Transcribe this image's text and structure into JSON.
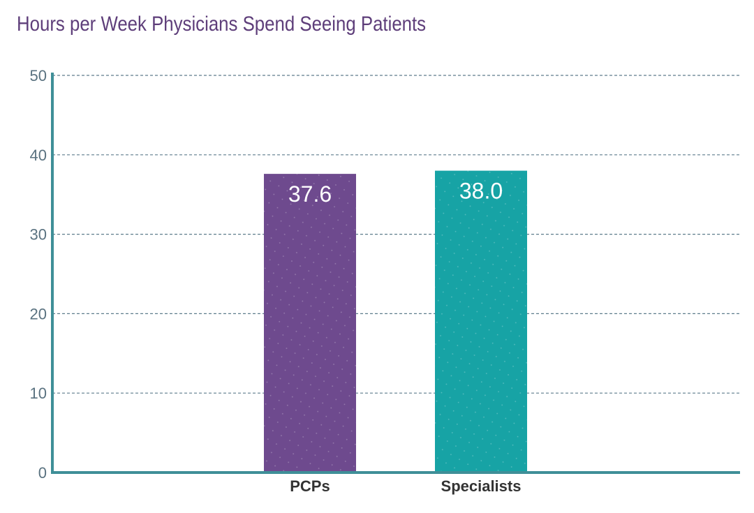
{
  "chart_data": {
    "type": "bar",
    "title": "Hours per Week Physicians Spend Seeing Patients",
    "categories": [
      "PCPs",
      "Specialists"
    ],
    "values": [
      37.6,
      38.0
    ],
    "value_labels": [
      "37.6",
      "38.0"
    ],
    "xlabel": "",
    "ylabel": "",
    "ylim": [
      0,
      50
    ],
    "yticks": [
      0,
      10,
      20,
      30,
      40,
      50
    ],
    "grid": true,
    "legend": "none",
    "colors": {
      "bars": [
        "#6e4a8e",
        "#17a3a5"
      ],
      "axis": "#3f8f98",
      "grid": "#5d7c8c",
      "title": "#5e3e7a"
    }
  }
}
